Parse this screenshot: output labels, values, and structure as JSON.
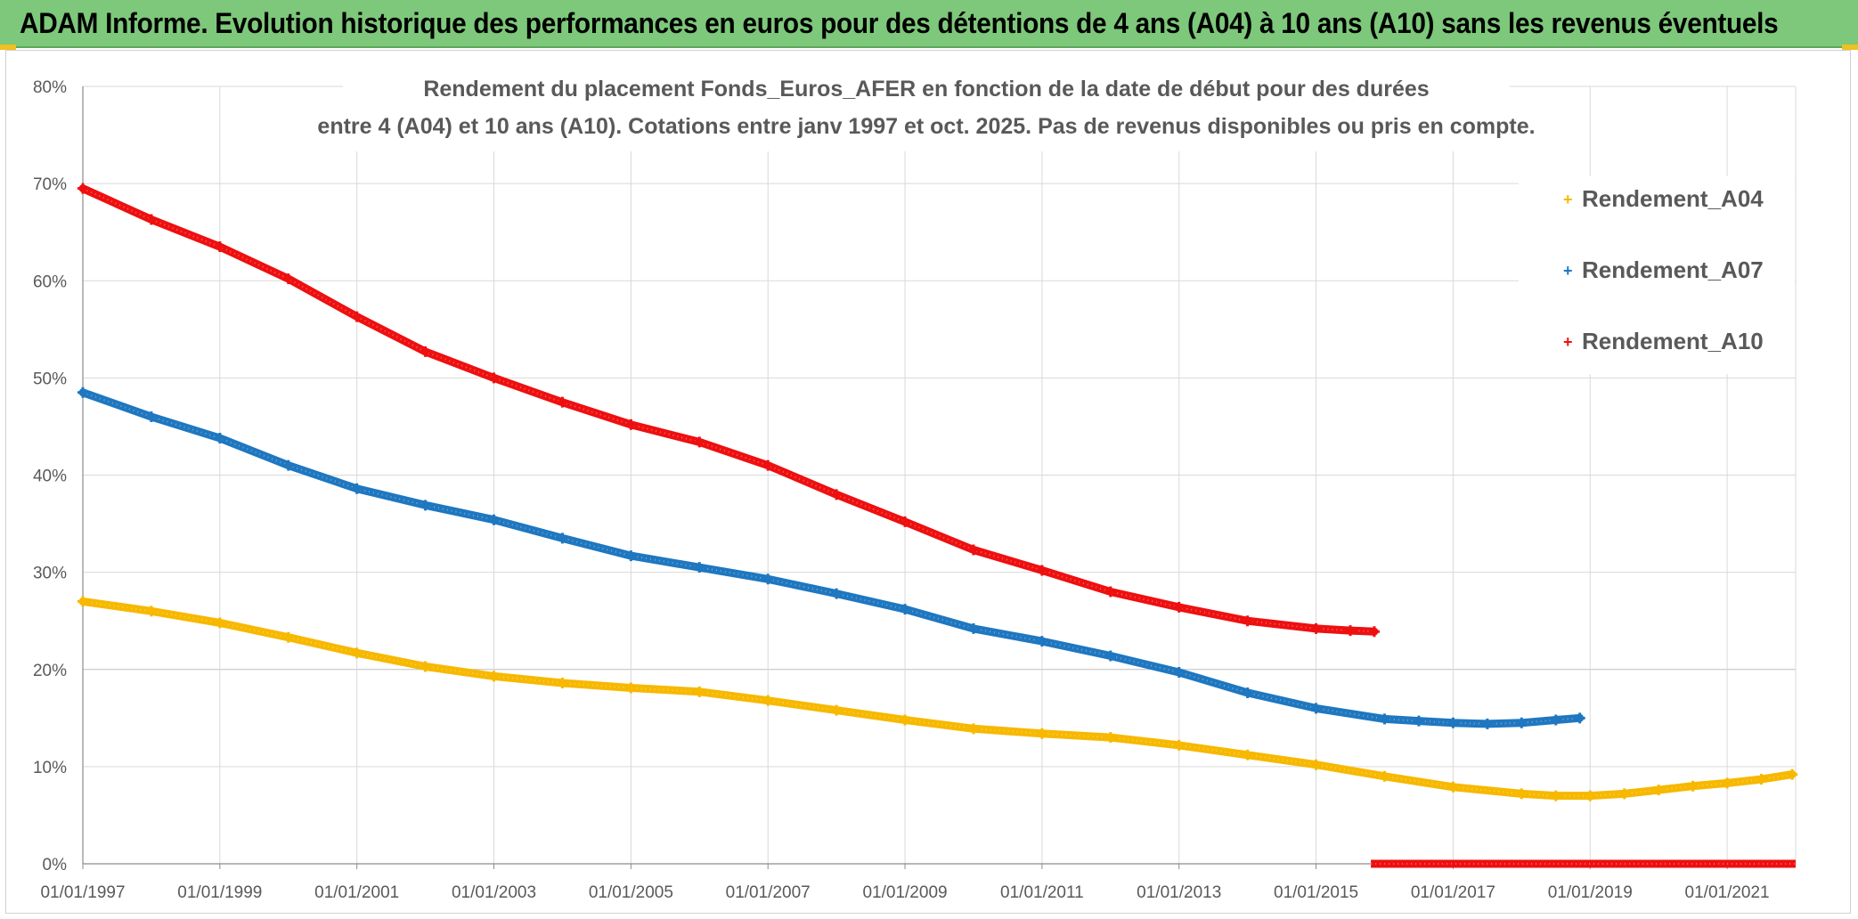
{
  "banner": {
    "title": "ADAM Informe. Evolution historique des performances en euros pour des détentions de 4 ans (A04) à 10 ans (A10) sans les revenus éventuels",
    "background": "#7dc87a"
  },
  "chart_data": {
    "type": "scatter",
    "title_line1": "Rendement du placement Fonds_Euros_AFER en fonction de la date de début pour des durées",
    "title_line2": "entre 4 (A04) et 10 ans (A10). Cotations entre janv 1997 et oct. 2025. Pas de revenus disponibles ou pris en compte.",
    "xlabel": "",
    "ylabel": "",
    "xlim": [
      1997.0,
      2022.0
    ],
    "ylim": [
      0,
      80
    ],
    "y_ticks": [
      0,
      10,
      20,
      30,
      40,
      50,
      60,
      70,
      80
    ],
    "y_tick_labels": [
      "0%",
      "10%",
      "20%",
      "30%",
      "40%",
      "50%",
      "60%",
      "70%",
      "80%"
    ],
    "x_ticks": [
      1997,
      1999,
      2001,
      2003,
      2005,
      2007,
      2009,
      2011,
      2013,
      2015,
      2017,
      2019,
      2021
    ],
    "x_tick_labels": [
      "01/01/1997",
      "01/01/1999",
      "01/01/2001",
      "01/01/2003",
      "01/01/2005",
      "01/01/2007",
      "01/01/2009",
      "01/01/2011",
      "01/01/2013",
      "01/01/2015",
      "01/01/2017",
      "01/01/2019",
      "01/01/2021"
    ],
    "grid": true,
    "legend_position": "top-right",
    "marker": "+",
    "series": [
      {
        "name": "Rendement_A04",
        "color": "#f7b800",
        "points": [
          [
            1997.0,
            27.0
          ],
          [
            1998.0,
            26.0
          ],
          [
            1999.0,
            24.8
          ],
          [
            2000.0,
            23.3
          ],
          [
            2001.0,
            21.7
          ],
          [
            2002.0,
            20.3
          ],
          [
            2003.0,
            19.3
          ],
          [
            2004.0,
            18.6
          ],
          [
            2005.0,
            18.1
          ],
          [
            2006.0,
            17.7
          ],
          [
            2007.0,
            16.8
          ],
          [
            2008.0,
            15.8
          ],
          [
            2009.0,
            14.8
          ],
          [
            2010.0,
            13.9
          ],
          [
            2011.0,
            13.4
          ],
          [
            2012.0,
            13.0
          ],
          [
            2013.0,
            12.2
          ],
          [
            2014.0,
            11.2
          ],
          [
            2015.0,
            10.2
          ],
          [
            2016.0,
            9.0
          ],
          [
            2017.0,
            7.9
          ],
          [
            2018.0,
            7.2
          ],
          [
            2018.5,
            7.0
          ],
          [
            2019.0,
            7.0
          ],
          [
            2019.5,
            7.2
          ],
          [
            2020.0,
            7.6
          ],
          [
            2020.5,
            8.0
          ],
          [
            2021.0,
            8.3
          ],
          [
            2021.5,
            8.7
          ],
          [
            2021.95,
            9.2
          ]
        ]
      },
      {
        "name": "Rendement_A07",
        "color": "#1f77c0",
        "points": [
          [
            1997.0,
            48.5
          ],
          [
            1998.0,
            46.0
          ],
          [
            1999.0,
            43.8
          ],
          [
            2000.0,
            41.0
          ],
          [
            2001.0,
            38.6
          ],
          [
            2002.0,
            36.9
          ],
          [
            2003.0,
            35.4
          ],
          [
            2004.0,
            33.5
          ],
          [
            2005.0,
            31.7
          ],
          [
            2006.0,
            30.5
          ],
          [
            2007.0,
            29.3
          ],
          [
            2008.0,
            27.8
          ],
          [
            2009.0,
            26.2
          ],
          [
            2010.0,
            24.2
          ],
          [
            2011.0,
            22.9
          ],
          [
            2012.0,
            21.4
          ],
          [
            2013.0,
            19.7
          ],
          [
            2014.0,
            17.6
          ],
          [
            2015.0,
            16.0
          ],
          [
            2016.0,
            14.9
          ],
          [
            2016.5,
            14.7
          ],
          [
            2017.0,
            14.5
          ],
          [
            2017.5,
            14.4
          ],
          [
            2018.0,
            14.5
          ],
          [
            2018.5,
            14.8
          ],
          [
            2018.85,
            15.0
          ]
        ]
      },
      {
        "name": "Rendement_A10",
        "color": "#ee1010",
        "points": [
          [
            1997.0,
            69.5
          ],
          [
            1998.0,
            66.3
          ],
          [
            1999.0,
            63.5
          ],
          [
            2000.0,
            60.2
          ],
          [
            2001.0,
            56.3
          ],
          [
            2002.0,
            52.7
          ],
          [
            2003.0,
            50.0
          ],
          [
            2004.0,
            47.5
          ],
          [
            2005.0,
            45.2
          ],
          [
            2006.0,
            43.4
          ],
          [
            2007.0,
            41.0
          ],
          [
            2008.0,
            38.0
          ],
          [
            2009.0,
            35.2
          ],
          [
            2010.0,
            32.3
          ],
          [
            2011.0,
            30.2
          ],
          [
            2012.0,
            28.0
          ],
          [
            2013.0,
            26.4
          ],
          [
            2014.0,
            25.0
          ],
          [
            2015.0,
            24.2
          ],
          [
            2015.5,
            24.0
          ],
          [
            2015.85,
            23.9
          ]
        ],
        "zero_segment": [
          2015.8,
          2022.0
        ]
      }
    ]
  }
}
